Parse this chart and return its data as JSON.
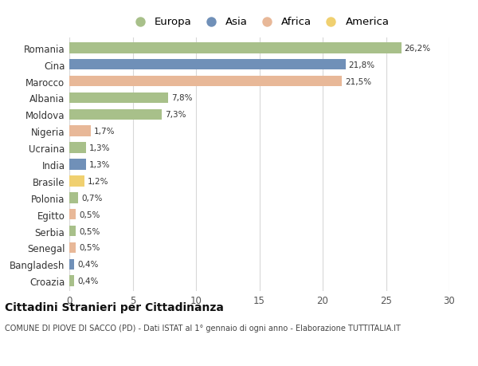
{
  "countries": [
    "Romania",
    "Cina",
    "Marocco",
    "Albania",
    "Moldova",
    "Nigeria",
    "Ucraina",
    "India",
    "Brasile",
    "Polonia",
    "Egitto",
    "Serbia",
    "Senegal",
    "Bangladesh",
    "Croazia"
  ],
  "values": [
    26.2,
    21.8,
    21.5,
    7.8,
    7.3,
    1.7,
    1.3,
    1.3,
    1.2,
    0.7,
    0.5,
    0.5,
    0.5,
    0.4,
    0.4
  ],
  "labels": [
    "26,2%",
    "21,8%",
    "21,5%",
    "7,8%",
    "7,3%",
    "1,7%",
    "1,3%",
    "1,3%",
    "1,2%",
    "0,7%",
    "0,5%",
    "0,5%",
    "0,5%",
    "0,4%",
    "0,4%"
  ],
  "continents": [
    "Europa",
    "Asia",
    "Africa",
    "Europa",
    "Europa",
    "Africa",
    "Europa",
    "Asia",
    "America",
    "Europa",
    "Africa",
    "Europa",
    "Africa",
    "Asia",
    "Europa"
  ],
  "continent_colors": {
    "Europa": "#a8c08a",
    "Asia": "#7090b8",
    "Africa": "#e8b898",
    "America": "#f0d070"
  },
  "legend_order": [
    "Europa",
    "Asia",
    "Africa",
    "America"
  ],
  "xlim": [
    0,
    30
  ],
  "xticks": [
    0,
    5,
    10,
    15,
    20,
    25,
    30
  ],
  "title": "Cittadini Stranieri per Cittadinanza",
  "subtitle": "COMUNE DI PIOVE DI SACCO (PD) - Dati ISTAT al 1° gennaio di ogni anno - Elaborazione TUTTITALIA.IT",
  "bg_color": "#ffffff",
  "grid_color": "#d8d8d8",
  "bar_height": 0.65
}
